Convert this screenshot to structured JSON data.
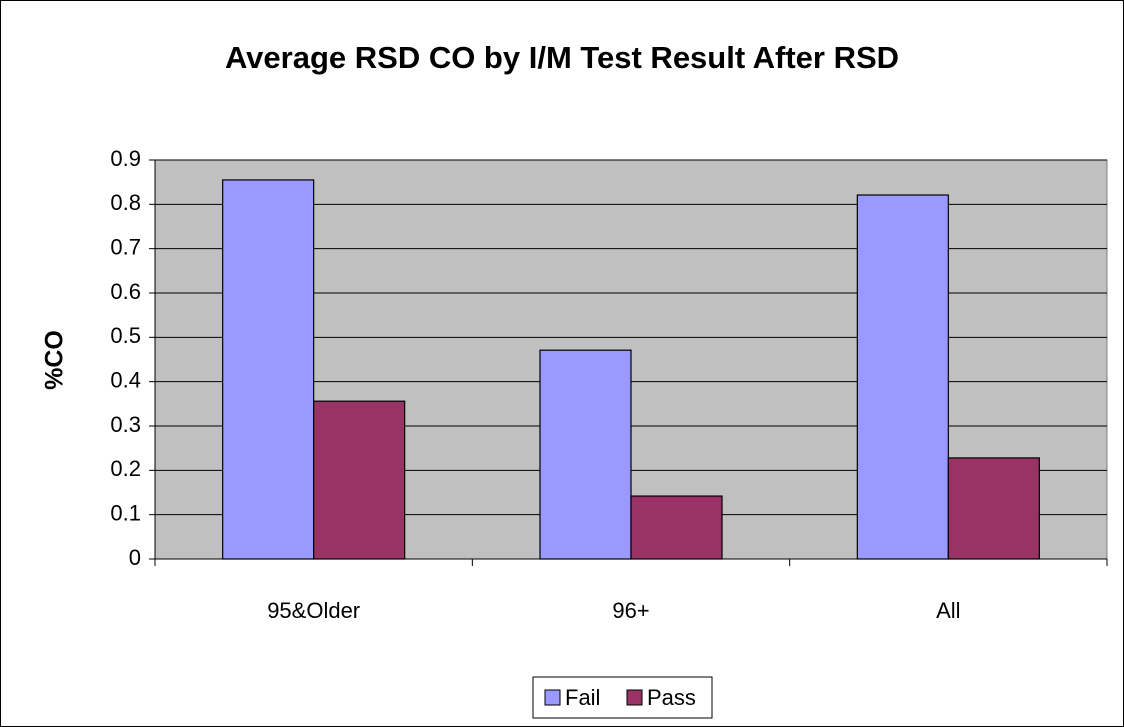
{
  "chart_data": {
    "type": "bar",
    "title": "Average RSD CO by I/M Test Result After RSD",
    "y_label": "%CO",
    "categories": [
      "95&Older",
      "96+",
      "All"
    ],
    "series": [
      {
        "name": "Fail",
        "color": "#9999ff",
        "values": [
          0.855,
          0.471,
          0.821
        ]
      },
      {
        "name": "Pass",
        "color": "#993366",
        "values": [
          0.356,
          0.142,
          0.228
        ]
      }
    ],
    "ylim": [
      0,
      0.9
    ],
    "yticks": [
      0,
      0.1,
      0.2,
      0.3,
      0.4,
      0.5,
      0.6,
      0.7,
      0.8,
      0.9
    ],
    "grid": true,
    "plot_background": "#c0c0c0",
    "legend": "bottom"
  }
}
